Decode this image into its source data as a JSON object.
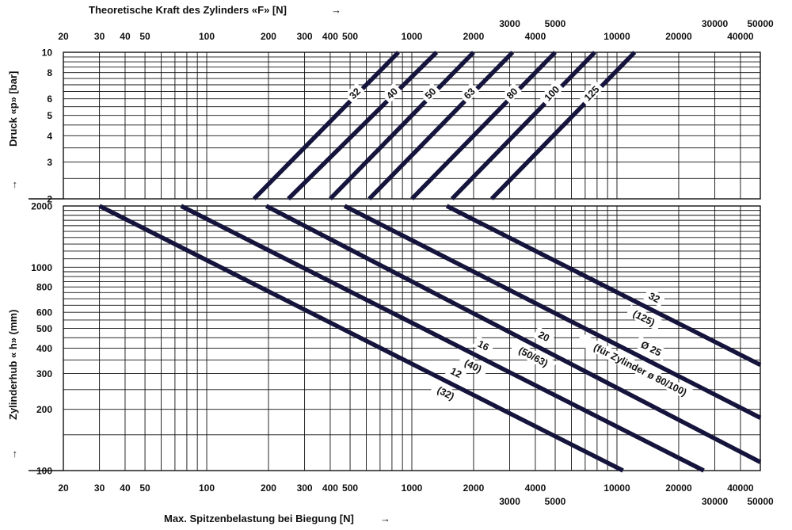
{
  "chart_data": {
    "type": "nomogram",
    "top_title": "Theoretische Kraft des Zylinders «F» [N]",
    "bottom_title": "Max. Spitzenbelastung bei Biegung [N]",
    "arrow": "→",
    "x_axis": {
      "scale": "log",
      "range": [
        20,
        50000
      ],
      "ticks": [
        20,
        30,
        40,
        50,
        100,
        200,
        300,
        400,
        500,
        1000,
        2000,
        3000,
        4000,
        5000,
        10000,
        20000,
        30000,
        40000,
        50000
      ],
      "tick_labels_row1": [
        "20",
        "30",
        "40",
        "50",
        "100",
        "200",
        "300",
        "400",
        "500",
        "1000",
        "2000",
        "",
        "4000",
        "",
        "10000",
        "20000",
        "",
        "40000",
        ""
      ],
      "tick_labels_row2": [
        "",
        "",
        "",
        "",
        "",
        "",
        "",
        "",
        "",
        "",
        "",
        "3000",
        "",
        "5000",
        "",
        "",
        "30000",
        "",
        "50000"
      ]
    },
    "pressure_axis": {
      "label": "Druck «p» [bar]",
      "arrow": "↑",
      "scale": "log",
      "range": [
        2,
        10
      ],
      "ticks": [
        "2",
        "3",
        "4",
        "5",
        "6",
        "8",
        "10"
      ]
    },
    "stroke_axis": {
      "label": "Zylinderhub « h» (mm)",
      "arrow": "↑",
      "scale": "log",
      "range": [
        100,
        2000
      ],
      "ticks": [
        "100",
        "200",
        "300",
        "400",
        "500",
        "600",
        "800",
        "1000",
        "2000"
      ]
    },
    "force_lines": [
      {
        "label": "32",
        "force_at_2bar": 170,
        "force_at_10bar": 860
      },
      {
        "label": "40",
        "force_at_2bar": 250,
        "force_at_10bar": 1320
      },
      {
        "label": "50",
        "force_at_2bar": 400,
        "force_at_10bar": 2000
      },
      {
        "label": "63",
        "force_at_2bar": 620,
        "force_at_10bar": 3100
      },
      {
        "label": "80",
        "force_at_2bar": 1000,
        "force_at_10bar": 5000
      },
      {
        "label": "100",
        "force_at_2bar": 1570,
        "force_at_10bar": 7800
      },
      {
        "label": "125",
        "force_at_2bar": 2450,
        "force_at_10bar": 12200
      }
    ],
    "stroke_lines": [
      {
        "label_main": "12",
        "label_sub": "(32)",
        "load_at_2000mm": 30,
        "load_at_100mm": 10700
      },
      {
        "label_main": "16",
        "label_sub": "(40)",
        "load_at_2000mm": 75,
        "load_at_100mm": 26500
      },
      {
        "label_main": "20",
        "label_sub": "(50/63)",
        "load_at_2000mm": 195,
        "load_at_100mm": 60000
      },
      {
        "label_main": "Ø 25",
        "label_sub": "(für Zylinder ø 80/100)",
        "load_at_2000mm": 470,
        "load_at_100mm": 160000
      },
      {
        "label_main": "32",
        "label_sub": "(125)",
        "load_at_2000mm": 1480,
        "load_at_100mm": 520000
      }
    ]
  }
}
